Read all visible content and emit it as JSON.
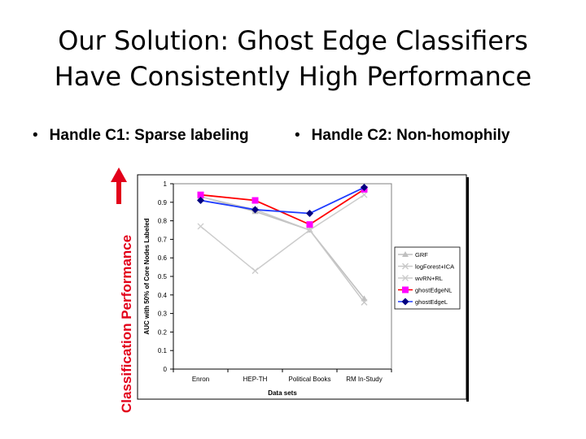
{
  "slide": {
    "title_line1": "Our Solution: Ghost Edge Classifiers",
    "title_line2": "Have Consistently High Performance",
    "bullets": [
      "Handle C1: Sparse labeling",
      "Handle C2: Non-homophily"
    ],
    "side_label": "Classification Performance",
    "accent_color": "#e2001a"
  },
  "chart_data": {
    "type": "line",
    "xlabel": "Data sets",
    "ylabel": "AUC with 50% of Core Nodes Labeled",
    "categories": [
      "Enron",
      "HEP-TH",
      "Political Books",
      "RM In-Study"
    ],
    "ylim": [
      0,
      1
    ],
    "yticks": [
      "0",
      "0.1",
      "0.2",
      "0.3",
      "0.4",
      "0.5",
      "0.6",
      "0.7",
      "0.8",
      "0.9",
      "1"
    ],
    "grid": false,
    "legend_position": "right",
    "series": [
      {
        "name": "GRF",
        "values": [
          0.93,
          0.85,
          0.75,
          0.38
        ],
        "color": "#c0c0c0",
        "marker": "triangle"
      },
      {
        "name": "logForest+ICA",
        "values": [
          0.93,
          0.86,
          0.75,
          0.36
        ],
        "color": "#c8c8c8",
        "marker": "x"
      },
      {
        "name": "wvRN+RL",
        "values": [
          0.77,
          0.53,
          0.75,
          0.94
        ],
        "color": "#cccccc",
        "marker": "x"
      },
      {
        "name": "ghostEdgeNL",
        "values": [
          0.94,
          0.91,
          0.78,
          0.97
        ],
        "color": "#ff0000",
        "marker": "square",
        "marker_color": "#ff00ff"
      },
      {
        "name": "ghostEdgeL",
        "values": [
          0.91,
          0.86,
          0.84,
          0.98
        ],
        "color": "#1f3cff",
        "marker": "diamond",
        "marker_color": "#000080"
      }
    ]
  }
}
